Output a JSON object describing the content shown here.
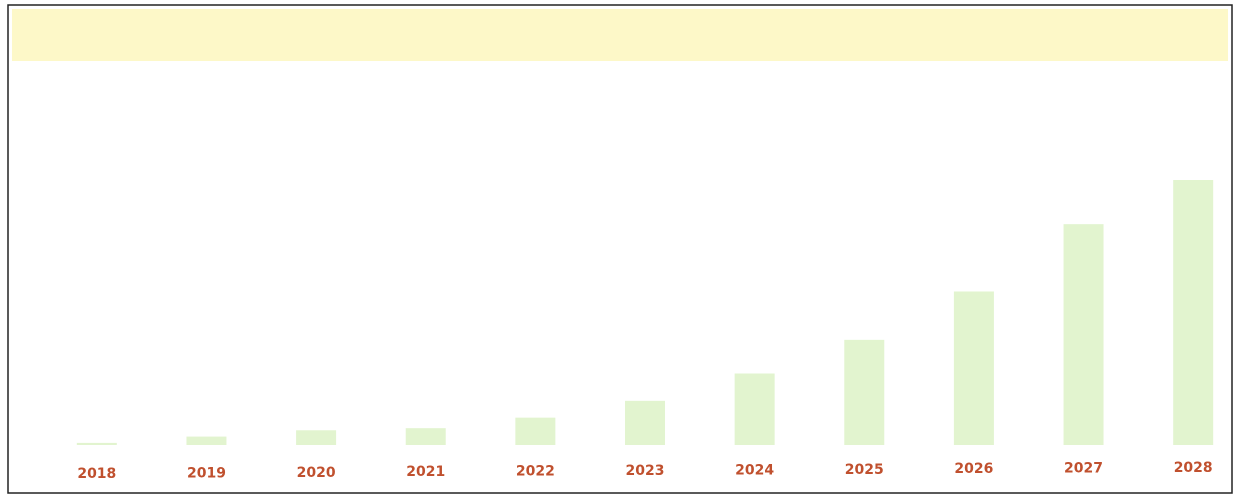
{
  "chart_data": {
    "type": "bar",
    "categories": [
      "2018",
      "2019",
      "2020",
      "2021",
      "2022",
      "2023",
      "2024",
      "2025",
      "2026",
      "2027",
      "2028"
    ],
    "values": [
      2,
      8,
      14,
      16,
      26,
      42,
      68,
      100,
      146,
      210,
      252
    ],
    "color": "#e2f4cf",
    "label_color": "#c0502e",
    "grid": false
  }
}
